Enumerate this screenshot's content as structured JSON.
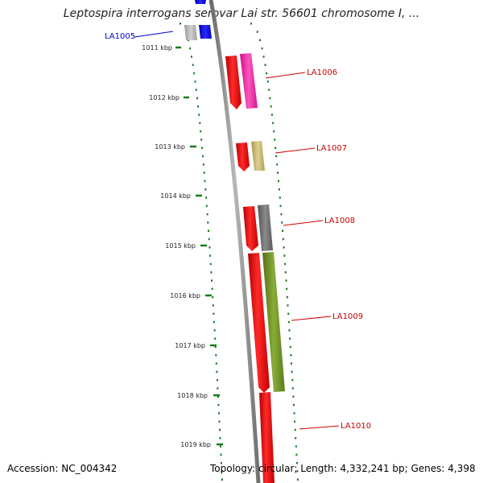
{
  "title": "Leptospira interrogans serovar Lai str. 56601 chromosome I, ...",
  "footer": {
    "accession": "Accession: NC_004342",
    "summary": "Topology: circular; Length: 4,332,241 bp; Genes: 4,398"
  },
  "ruler": [
    {
      "label": "1011 kbp"
    },
    {
      "label": "1012 kbp"
    },
    {
      "label": "1013 kbp"
    },
    {
      "label": "1014 kbp"
    },
    {
      "label": "1015 kbp"
    },
    {
      "label": "1016 kbp"
    },
    {
      "label": "1017 kbp"
    },
    {
      "label": "1018 kbp"
    },
    {
      "label": "1019 kbp"
    }
  ],
  "genes": [
    {
      "label": "LA1005",
      "color": "#0000cc"
    },
    {
      "label": "LA1006",
      "color": "#cc0000"
    },
    {
      "label": "LA1007",
      "color": "#cc0000"
    },
    {
      "label": "LA1008",
      "color": "#cc0000"
    },
    {
      "label": "LA1009",
      "color": "#cc0000"
    },
    {
      "label": "LA1010",
      "color": "#cc0000"
    }
  ],
  "colors": {
    "backbone": "#8a8a8a",
    "ruler_dots": "#1a7a1a",
    "cds": "#ff0000",
    "cog_blue": "#0000ff",
    "cog_gray_light": "#b0b0b0",
    "cog_magenta": "#ff22aa",
    "cog_tan": "#c8b870",
    "cog_dark_gray": "#6a6a6a",
    "cog_olive": "#6e8e22"
  }
}
